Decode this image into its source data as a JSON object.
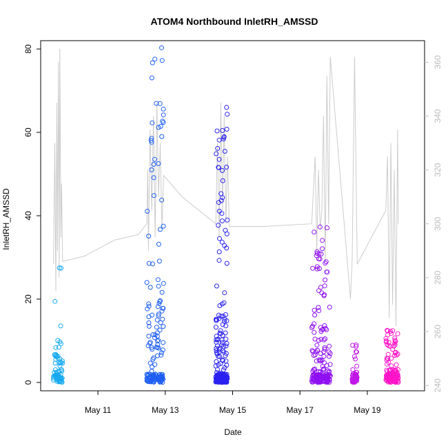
{
  "chart_data": {
    "type": "scatter",
    "title": "ATOM4 Northbound InletRH_AMSSD",
    "xlabel": "Date",
    "ylabel": "InletRH_AMSSD",
    "x_unit": "day of May",
    "xlim": [
      9.3,
      20.7
    ],
    "ylim": [
      -2,
      82
    ],
    "y2lim": [
      238,
      368
    ],
    "x_ticks": [
      11,
      13,
      15,
      17,
      19
    ],
    "x_tick_labels": [
      "May 11",
      "May 13",
      "May 15",
      "May 17",
      "May 19"
    ],
    "y_ticks": [
      0,
      20,
      40,
      60,
      80
    ],
    "y2_ticks": [
      240,
      260,
      280,
      300,
      320,
      340,
      360
    ],
    "grid": false,
    "legend": "none",
    "colors": {
      "axis": "#000000",
      "secondary_axis": "#bbbbbb",
      "secondary_line": "#cccccc",
      "points_start": "#1aa7ee",
      "points_mid": "#2b1bee",
      "points_end": "#ff18c6"
    },
    "series": [
      {
        "marker": "open-circle",
        "clusters": [
          {
            "x": [
              9.68,
              9.95
            ],
            "y_max": 27.5,
            "color": "#16a9f0",
            "n": 70
          },
          {
            "x": [
              12.45,
              12.95
            ],
            "y_max": 80.3,
            "color": "#1f5ff2",
            "n": 160
          },
          {
            "x": [
              14.5,
              14.85
            ],
            "y_max": 66,
            "color": "#2b22f0",
            "n": 210
          },
          {
            "x": [
              17.35,
              17.9
            ],
            "y_max": 37.3,
            "color": "#8f10f2",
            "n": 170
          },
          {
            "x": [
              18.55,
              18.7
            ],
            "y_max": 9,
            "color": "#c016e8",
            "n": 60
          },
          {
            "x": [
              19.55,
              19.92
            ],
            "y_max": 12.5,
            "color": "#ff14c8",
            "n": 140
          }
        ]
      },
      {
        "axis": "right",
        "style": "line",
        "x": [
          9.68,
          9.72,
          9.75,
          9.78,
          9.8,
          9.83,
          9.85,
          9.87,
          9.9,
          9.92,
          9.95,
          10.6,
          11.5,
          12.2,
          12.45,
          12.48,
          12.5,
          12.55,
          12.6,
          12.65,
          12.7,
          12.75,
          12.8,
          12.85,
          12.9,
          12.95,
          13.5,
          14.5,
          14.55,
          14.6,
          14.65,
          14.7,
          14.75,
          14.8,
          14.85,
          14.9,
          15.9,
          17.35,
          17.45,
          17.5,
          17.55,
          17.6,
          17.65,
          17.7,
          17.75,
          17.8,
          17.85,
          17.9,
          18.5,
          18.55,
          18.62,
          18.7,
          19.55,
          19.6,
          19.65,
          19.7,
          19.75,
          19.8,
          19.85,
          19.9,
          19.92
        ],
        "y": [
          285,
          330,
          275,
          345,
          290,
          360,
          280,
          365,
          295,
          315,
          286,
          288,
          294,
          296,
          300,
          320,
          290,
          335,
          305,
          340,
          295,
          345,
          310,
          330,
          298,
          318,
          310,
          300,
          330,
          295,
          345,
          305,
          340,
          300,
          325,
          299,
          299,
          300,
          325,
          290,
          320,
          298,
          305,
          340,
          285,
          355,
          300,
          362,
          272,
          287,
          362,
          285,
          305,
          325,
          265,
          330,
          270,
          320,
          262,
          335,
          300
        ]
      }
    ]
  }
}
